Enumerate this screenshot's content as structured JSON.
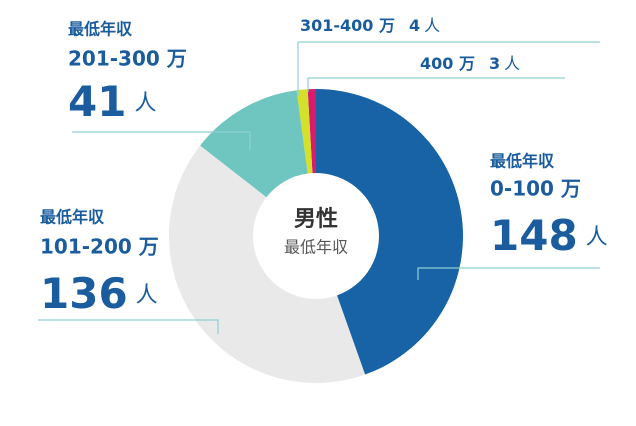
{
  "chart_data": {
    "type": "donut",
    "center_title": "男性",
    "center_subtitle": "最低年収",
    "label_prefix": "最低年収",
    "unit": "人",
    "categories": [
      "0-100 万",
      "101-200 万",
      "201-300 万",
      "301-400 万",
      "400 万"
    ],
    "values": [
      148,
      136,
      41,
      4,
      3
    ],
    "colors": [
      "#1763a6",
      "#e9e9e9",
      "#6fc5bf",
      "#d5e02b",
      "#d81b6c"
    ]
  }
}
